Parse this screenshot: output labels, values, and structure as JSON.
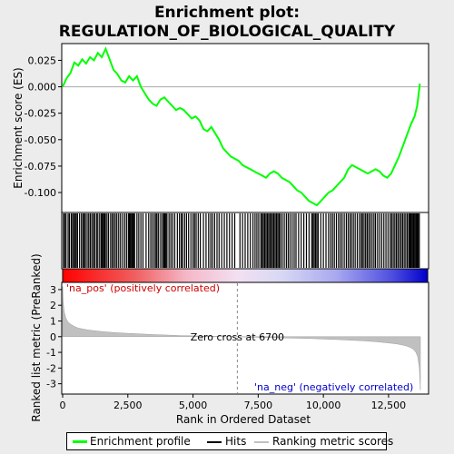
{
  "chart_data": {
    "type": "line",
    "title_line1": "Enrichment plot:",
    "title_line2": "REGULATION_OF_BIOLOGICAL_QUALITY",
    "top_panel": {
      "ylabel": "Enrichment score (ES)",
      "ylim": [
        -0.118,
        0.04
      ],
      "yticks": [
        0.025,
        0.0,
        -0.025,
        -0.05,
        -0.075,
        -0.1
      ],
      "ytick_labels": [
        "0.025",
        "0.000",
        "-0.025",
        "-0.050",
        "-0.075",
        "-0.100"
      ],
      "series_name": "Enrichment profile",
      "color": "#00ff00",
      "x": [
        0,
        150,
        300,
        450,
        600,
        750,
        900,
        1050,
        1200,
        1350,
        1500,
        1650,
        1800,
        1950,
        2100,
        2250,
        2400,
        2550,
        2700,
        2850,
        3000,
        3150,
        3300,
        3450,
        3600,
        3750,
        3900,
        4050,
        4200,
        4350,
        4500,
        4650,
        4800,
        4950,
        5100,
        5250,
        5400,
        5550,
        5700,
        5850,
        6000,
        6150,
        6300,
        6450,
        6600,
        6750,
        6900,
        7050,
        7200,
        7350,
        7500,
        7650,
        7800,
        7950,
        8100,
        8250,
        8400,
        8550,
        8700,
        8850,
        9000,
        9150,
        9300,
        9450,
        9600,
        9750,
        9900,
        10050,
        10200,
        10350,
        10500,
        10650,
        10800,
        10950,
        11100,
        11250,
        11400,
        11550,
        11700,
        11850,
        12000,
        12150,
        12300,
        12450,
        12600,
        12750,
        12900,
        13050,
        13200,
        13350,
        13500,
        13600,
        13700
      ],
      "y": [
        0.0,
        0.008,
        0.013,
        0.023,
        0.02,
        0.026,
        0.022,
        0.028,
        0.025,
        0.032,
        0.028,
        0.036,
        0.026,
        0.016,
        0.012,
        0.006,
        0.004,
        0.01,
        0.006,
        0.01,
        0.0,
        -0.006,
        -0.012,
        -0.016,
        -0.018,
        -0.012,
        -0.01,
        -0.014,
        -0.018,
        -0.022,
        -0.02,
        -0.022,
        -0.026,
        -0.03,
        -0.028,
        -0.032,
        -0.04,
        -0.042,
        -0.038,
        -0.044,
        -0.05,
        -0.058,
        -0.062,
        -0.066,
        -0.068,
        -0.07,
        -0.074,
        -0.076,
        -0.078,
        -0.08,
        -0.082,
        -0.084,
        -0.086,
        -0.082,
        -0.08,
        -0.082,
        -0.086,
        -0.088,
        -0.09,
        -0.094,
        -0.098,
        -0.1,
        -0.104,
        -0.108,
        -0.11,
        -0.112,
        -0.108,
        -0.104,
        -0.1,
        -0.098,
        -0.094,
        -0.09,
        -0.086,
        -0.078,
        -0.074,
        -0.076,
        -0.078,
        -0.08,
        -0.082,
        -0.08,
        -0.078,
        -0.08,
        -0.084,
        -0.086,
        -0.082,
        -0.074,
        -0.066,
        -0.056,
        -0.046,
        -0.036,
        -0.028,
        -0.018,
        0.003
      ]
    },
    "hits_panel": {
      "series_name": "Hits",
      "color": "#000000",
      "positions": [
        30,
        80,
        130,
        210,
        260,
        330,
        380,
        430,
        480,
        520,
        570,
        650,
        720,
        780,
        830,
        870,
        940,
        1000,
        1060,
        1120,
        1180,
        1230,
        1300,
        1350,
        1420,
        1480,
        1520,
        1560,
        1600,
        1640,
        1700,
        1760,
        1840,
        1900,
        1960,
        2020,
        2080,
        2150,
        2220,
        2300,
        2380,
        2450,
        2520,
        2560,
        2600,
        2640,
        2680,
        2720,
        2760,
        2850,
        2920,
        3000,
        3080,
        3200,
        3300,
        3380,
        3450,
        3520,
        3580,
        3620,
        3680,
        3760,
        3830,
        3880,
        3920,
        3960,
        4000,
        4080,
        4150,
        4220,
        4300,
        4400,
        4480,
        4550,
        4600,
        4680,
        4750,
        4830,
        4920,
        5000,
        5060,
        5120,
        5200,
        5280,
        5400,
        5500,
        5600,
        5680,
        5750,
        5830,
        5920,
        6000,
        6100,
        6200,
        6300,
        6400,
        6500,
        6600,
        6800,
        6900,
        7000,
        7100,
        7200,
        7300,
        7380,
        7450,
        7520,
        7600,
        7650,
        7700,
        7750,
        7800,
        7850,
        7900,
        7950,
        8000,
        8050,
        8100,
        8150,
        8200,
        8250,
        8300,
        8350,
        8420,
        8500,
        8580,
        8650,
        8720,
        8800,
        8880,
        8950,
        9050,
        9150,
        9250,
        9350,
        9450,
        9550,
        9600,
        9650,
        9700,
        9750,
        9800,
        9900,
        10000,
        10100,
        10200,
        10280,
        10350,
        10420,
        10500,
        10580,
        10650,
        10720,
        10800,
        10880,
        10950,
        11020,
        11080,
        11150,
        11220,
        11300,
        11380,
        11450,
        11500,
        11560,
        11620,
        11680,
        11740,
        11800,
        11870,
        11940,
        12000,
        12080,
        12160,
        12240,
        12320,
        12400,
        12480,
        12560,
        12620,
        12680,
        12740,
        12800,
        12860,
        12920,
        12980,
        13040,
        13100,
        13160,
        13220,
        13280,
        13320,
        13360,
        13400,
        13440,
        13480,
        13520,
        13560,
        13600,
        13640,
        13680
      ]
    },
    "metric_panel": {
      "ylabel": "Ranked list metric (PreRanked)",
      "series_name": "Ranking metric scores",
      "color": "#c0c0c0",
      "ylim": [
        -3.6,
        3.4
      ],
      "yticks": [
        3,
        2,
        1,
        0,
        -1,
        -2,
        -3
      ],
      "ytick_labels": [
        "3",
        "2",
        "1",
        "0",
        "-1",
        "-2",
        "-3"
      ],
      "x": [
        0,
        20,
        60,
        120,
        200,
        300,
        450,
        600,
        800,
        1000,
        1300,
        1600,
        2000,
        2500,
        3000,
        3500,
        4000,
        4500,
        5000,
        5500,
        6000,
        6500,
        6700,
        7000,
        7500,
        8000,
        8500,
        9000,
        9500,
        10000,
        10500,
        11000,
        11500,
        12000,
        12500,
        12800,
        13000,
        13200,
        13350,
        13450,
        13550,
        13620,
        13680,
        13720
      ],
      "y": [
        3.2,
        2.2,
        1.6,
        1.2,
        0.95,
        0.8,
        0.65,
        0.55,
        0.48,
        0.42,
        0.36,
        0.31,
        0.26,
        0.21,
        0.17,
        0.13,
        0.1,
        0.07,
        0.05,
        0.03,
        0.015,
        0.005,
        0.0,
        -0.02,
        -0.04,
        -0.06,
        -0.08,
        -0.1,
        -0.12,
        -0.15,
        -0.18,
        -0.22,
        -0.26,
        -0.32,
        -0.4,
        -0.46,
        -0.52,
        -0.6,
        -0.7,
        -0.8,
        -1.0,
        -1.3,
        -2.0,
        -3.4
      ],
      "pos_label": "'na_pos' (positively correlated)",
      "neg_label": "'na_neg' (negatively correlated)",
      "zero_cross_label": "Zero cross at 6700",
      "zero_cross": 6700
    },
    "xaxis": {
      "xlabel": "Rank in Ordered Dataset",
      "xlim": [
        0,
        14000
      ],
      "xticks": [
        0,
        2500,
        5000,
        7500,
        10000,
        12500
      ],
      "xtick_labels": [
        "0",
        "2,500",
        "5,000",
        "7,500",
        "10,000",
        "12,500"
      ],
      "n_genes": 13750
    },
    "legend": {
      "placement": "bottom",
      "items": [
        "Enrichment profile",
        "Hits",
        "Ranking metric scores"
      ]
    }
  }
}
